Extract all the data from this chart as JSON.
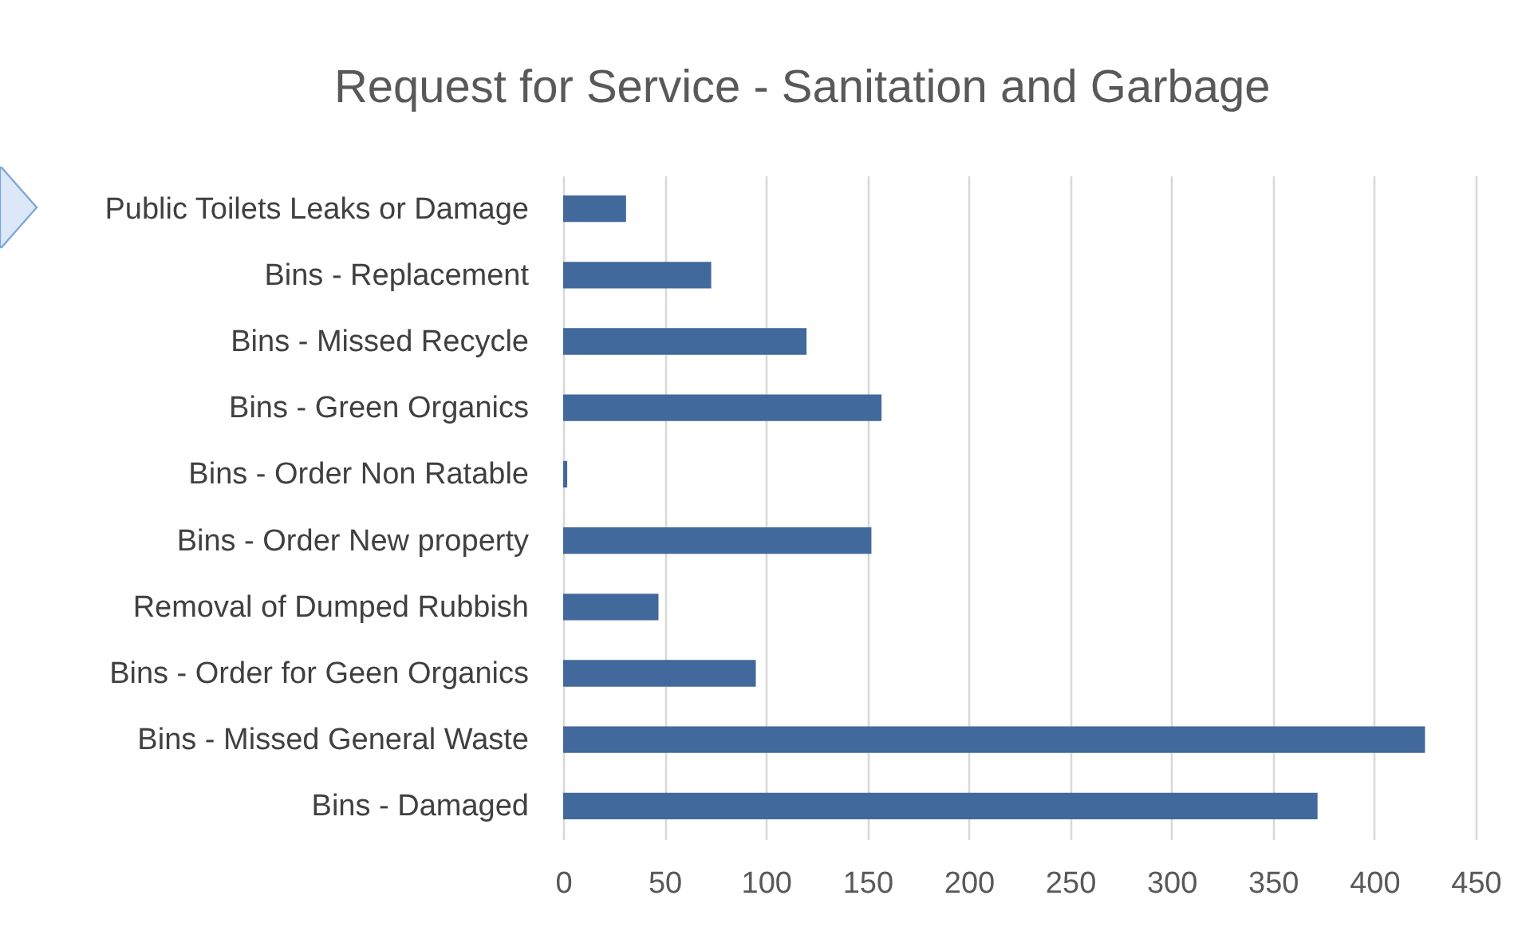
{
  "chart_data": {
    "type": "bar",
    "orientation": "horizontal",
    "title": "Request for Service - Sanitation and Garbage",
    "categories": [
      "Public Toilets Leaks or Damage",
      "Bins - Replacement",
      "Bins - Missed Recycle",
      "Bins - Green Organics",
      "Bins - Order Non Ratable",
      "Bins - Order New property",
      "Removal of Dumped Rubbish",
      "Bins - Order for Geen Organics",
      "Bins - Missed General Waste",
      "Bins - Damaged"
    ],
    "values": [
      31,
      73,
      120,
      157,
      2,
      152,
      47,
      95,
      425,
      372
    ],
    "color": "#41699b",
    "xlim": [
      0,
      450
    ],
    "xticks": [
      0,
      50,
      100,
      150,
      200,
      250,
      300,
      350,
      400,
      450
    ],
    "grid": "x"
  }
}
